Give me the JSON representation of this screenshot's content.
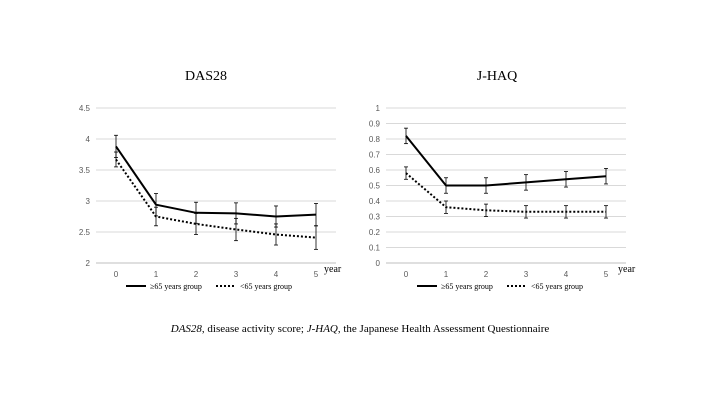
{
  "caption": {
    "das_abbr": "DAS28",
    "das_text": ", disease activity score; ",
    "jhaq_abbr": "J-HAQ",
    "jhaq_text": ", the Japanese Health Assessment Questionnaire"
  },
  "colors": {
    "line": "#000000",
    "grid": "#d9d9d9",
    "axis": "#bfbfbf",
    "text": "#595959"
  },
  "chart_data": [
    {
      "type": "line",
      "title": "DAS28",
      "xlabel": "year",
      "ylabel": "",
      "x": [
        0,
        1,
        2,
        3,
        4,
        5
      ],
      "ylim": [
        2,
        4.5
      ],
      "yticks": [
        "2",
        "2.5",
        "3",
        "3.5",
        "4",
        "4.5"
      ],
      "xticks": [
        "0",
        "1",
        "2",
        "3",
        "4",
        "5"
      ],
      "grid": true,
      "legend": "bottom",
      "series": [
        {
          "name": "≥65 years group",
          "style": "solid",
          "values": [
            3.88,
            2.94,
            2.81,
            2.8,
            2.75,
            2.78
          ],
          "err": [
            0.18,
            0.18,
            0.17,
            0.17,
            0.17,
            0.18
          ]
        },
        {
          "name": "<65 years group",
          "style": "dotted",
          "values": [
            3.67,
            2.75,
            2.63,
            2.54,
            2.46,
            2.41
          ],
          "err": [
            0.12,
            0.15,
            0.17,
            0.18,
            0.17,
            0.19
          ]
        }
      ]
    },
    {
      "type": "line",
      "title": "J-HAQ",
      "xlabel": "year",
      "ylabel": "",
      "x": [
        0,
        1,
        2,
        3,
        4,
        5
      ],
      "ylim": [
        0,
        1
      ],
      "yticks": [
        "0",
        "0.1",
        "0.2",
        "0.3",
        "0.4",
        "0.5",
        "0.6",
        "0.7",
        "0.8",
        "0.9",
        "1"
      ],
      "xticks": [
        "0",
        "1",
        "2",
        "3",
        "4",
        "5"
      ],
      "grid": true,
      "legend": "bottom",
      "series": [
        {
          "name": "≥65 years group",
          "style": "solid",
          "values": [
            0.82,
            0.5,
            0.5,
            0.52,
            0.54,
            0.56
          ],
          "err": [
            0.05,
            0.05,
            0.05,
            0.05,
            0.05,
            0.05
          ]
        },
        {
          "name": "<65 years group",
          "style": "dotted",
          "values": [
            0.58,
            0.36,
            0.34,
            0.33,
            0.33,
            0.33
          ],
          "err": [
            0.04,
            0.04,
            0.04,
            0.04,
            0.04,
            0.04
          ]
        }
      ]
    }
  ]
}
